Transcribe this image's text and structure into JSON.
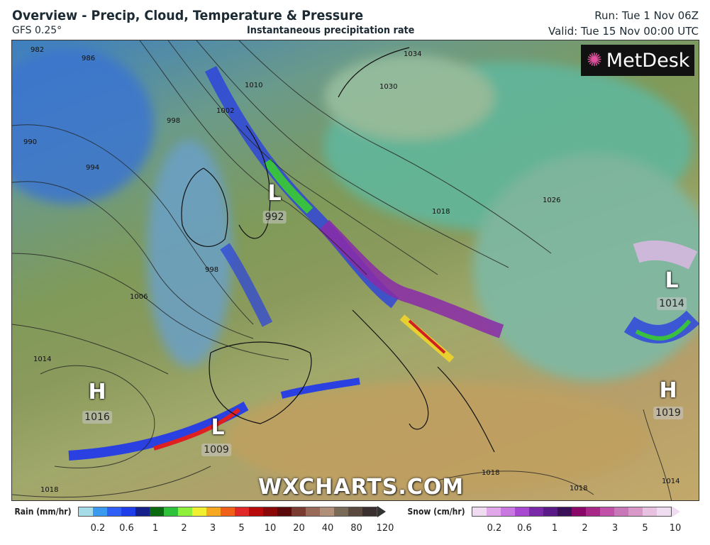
{
  "header": {
    "title": "Overview - Precip, Cloud, Temperature & Pressure",
    "model": "GFS 0.25°",
    "subtitle": "Instantaneous precipitation rate",
    "run": "Run: Tue 1 Nov 06Z",
    "valid": "Valid: Tue 15 Nov 00:00 UTC"
  },
  "logo": {
    "text": "MetDesk"
  },
  "watermark": "WXCHARTS.COM",
  "pressure_centers": [
    {
      "type": "L",
      "value": "992"
    },
    {
      "type": "L",
      "value": "1014"
    },
    {
      "type": "H",
      "value": "1016"
    },
    {
      "type": "H",
      "value": "1019"
    },
    {
      "type": "L",
      "value": "1009"
    }
  ],
  "isobar_labels": [
    "982",
    "986",
    "990",
    "994",
    "998",
    "1002",
    "1010",
    "1030",
    "1034",
    "1018",
    "1026",
    "998",
    "1006",
    "1014",
    "1018",
    "1018",
    "1014",
    "1018"
  ],
  "legend": {
    "rain": {
      "label": "Rain (mm/hr)",
      "ticks": [
        "0.2",
        "0.6",
        "1",
        "2",
        "3",
        "5",
        "10",
        "20",
        "40",
        "80",
        "120"
      ],
      "colors": [
        "#a6dce8",
        "#3a9af0",
        "#2f5ff5",
        "#1f3de8",
        "#15208a",
        "#0a6a10",
        "#2ec23a",
        "#8ef03a",
        "#f0f030",
        "#f5a820",
        "#f06018",
        "#e02828",
        "#b80a0a",
        "#8a0808",
        "#5a0a0a",
        "#7a3c30",
        "#9a6a58",
        "#b09078",
        "#7a6a58",
        "#5a4a40",
        "#3a3030"
      ]
    },
    "snow": {
      "label": "Snow (cm/hr)",
      "ticks": [
        "0.2",
        "0.6",
        "1",
        "2",
        "3",
        "5",
        "10"
      ],
      "colors": [
        "#f0dcf0",
        "#e0a8e8",
        "#c878e0",
        "#a848d0",
        "#7a2aa8",
        "#5a1a88",
        "#3a1058",
        "#8a0868",
        "#a82888",
        "#c050a8",
        "#c878b8",
        "#d898c8",
        "#e8c0e0",
        "#f0dcf0"
      ]
    }
  }
}
